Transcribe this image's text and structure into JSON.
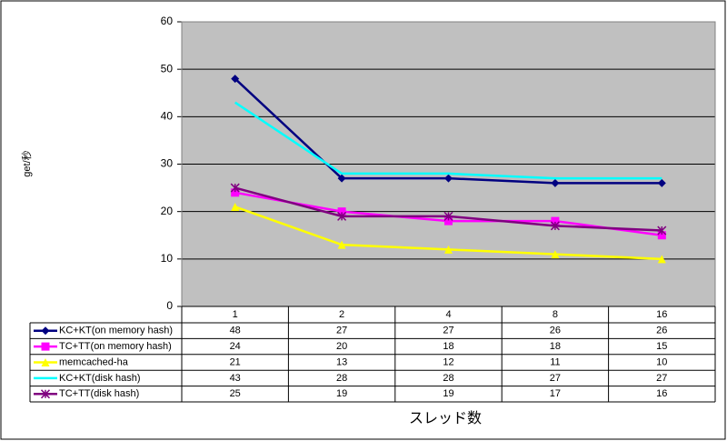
{
  "chart_data": {
    "type": "line",
    "y_label": "get/秒",
    "x_label": "スレッド数",
    "categories": [
      "1",
      "2",
      "4",
      "8",
      "16"
    ],
    "series": [
      {
        "name": "KC+KT(on memory hash)",
        "color": "#000080",
        "marker": "diamond",
        "values": [
          48,
          27,
          27,
          26,
          26
        ]
      },
      {
        "name": "TC+TT(on memory hash)",
        "color": "#ff00ff",
        "marker": "square",
        "values": [
          24,
          20,
          18,
          18,
          15
        ]
      },
      {
        "name": "memcached-ha",
        "color": "#ffff00",
        "marker": "triangle",
        "values": [
          21,
          13,
          12,
          11,
          10
        ]
      },
      {
        "name": "KC+KT(disk hash)",
        "color": "#00ffff",
        "marker": "none",
        "values": [
          43,
          28,
          28,
          27,
          27
        ]
      },
      {
        "name": "TC+TT(disk hash)",
        "color": "#800080",
        "marker": "star",
        "values": [
          25,
          19,
          19,
          17,
          16
        ]
      }
    ],
    "ylim": [
      0,
      60
    ],
    "yticks": [
      0,
      10,
      20,
      30,
      40,
      50,
      60
    ],
    "grid": true,
    "data_table": true
  }
}
